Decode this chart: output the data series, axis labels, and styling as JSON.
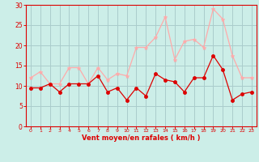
{
  "x": [
    0,
    1,
    2,
    3,
    4,
    5,
    6,
    7,
    8,
    9,
    10,
    11,
    12,
    13,
    14,
    15,
    16,
    17,
    18,
    19,
    20,
    21,
    22,
    23
  ],
  "wind_avg": [
    9.5,
    9.5,
    10.5,
    8.5,
    10.5,
    10.5,
    10.5,
    12.5,
    8.5,
    9.5,
    6.5,
    9.5,
    7.5,
    13.0,
    11.5,
    11.0,
    8.5,
    12.0,
    12.0,
    17.5,
    14.0,
    6.5,
    8.0,
    8.5
  ],
  "wind_gust": [
    12.0,
    13.5,
    10.5,
    10.5,
    14.5,
    14.5,
    10.5,
    14.5,
    11.5,
    13.0,
    12.5,
    19.5,
    19.5,
    22.0,
    27.0,
    16.5,
    21.0,
    21.5,
    19.5,
    29.0,
    26.5,
    17.5,
    12.0,
    12.0
  ],
  "avg_color": "#dd0000",
  "gust_color": "#ffaaaa",
  "bg_color": "#cceee8",
  "grid_color": "#aacccc",
  "axis_color": "#dd0000",
  "xlabel": "Vent moyen/en rafales ( km/h )",
  "ylim": [
    0,
    30
  ],
  "xlim_min": -0.5,
  "xlim_max": 23.5,
  "yticks": [
    0,
    5,
    10,
    15,
    20,
    25,
    30
  ],
  "xticks": [
    0,
    1,
    2,
    3,
    4,
    5,
    6,
    7,
    8,
    9,
    10,
    11,
    12,
    13,
    14,
    15,
    16,
    17,
    18,
    19,
    20,
    21,
    22,
    23
  ]
}
